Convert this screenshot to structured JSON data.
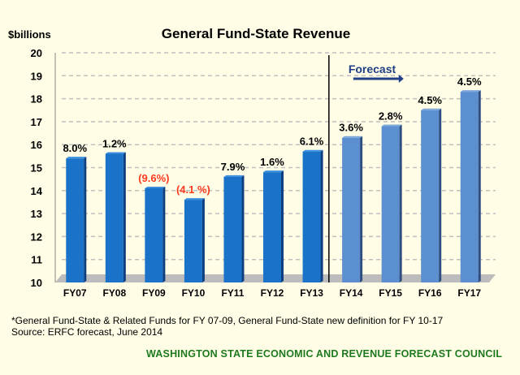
{
  "chart_data": {
    "type": "bar",
    "title": "General Fund-State Revenue",
    "ylabel": "$billions",
    "ylim": [
      10,
      20
    ],
    "yticks": [
      10,
      11,
      12,
      13,
      14,
      15,
      16,
      17,
      18,
      19,
      20
    ],
    "grid": "horizontal-dashed",
    "categories": [
      "FY07",
      "FY08",
      "FY09",
      "FY10",
      "FY11",
      "FY12",
      "FY13",
      "FY14",
      "FY15",
      "FY16",
      "FY17"
    ],
    "values": [
      15.4,
      15.6,
      14.1,
      13.6,
      14.6,
      14.8,
      15.7,
      16.3,
      16.8,
      17.5,
      18.3
    ],
    "data_labels": [
      "8.0%",
      "1.2%",
      "(9.6%)",
      "(4.1 %)",
      "7.9%",
      "1.6%",
      "6.1%",
      "3.6%",
      "2.8%",
      "4.5%",
      "4.5%"
    ],
    "forecast_label": "Forecast",
    "forecast_start": "FY14",
    "colors": {
      "actual": "#1a73c8",
      "forecast": "#5b8fd0",
      "negative_label": "#ff3b1f",
      "forecast_text": "#1f3f86"
    }
  },
  "footnote": {
    "line1": "*General Fund-State & Related Funds for FY 07-09, General Fund-State new definition for FY 10-17",
    "line2": "Source: ERFC forecast, June 2014"
  },
  "council": "WASHINGTON STATE ECONOMIC AND REVENUE FORECAST COUNCIL"
}
